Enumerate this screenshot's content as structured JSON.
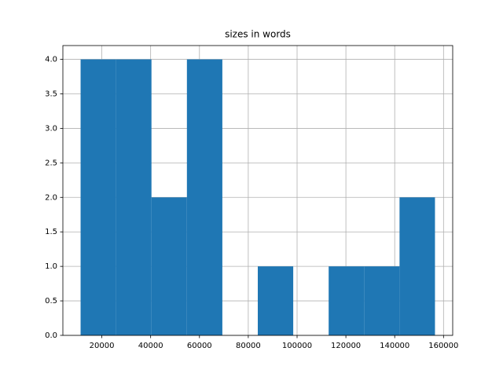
{
  "chart_data": {
    "type": "histogram",
    "title": "sizes in words",
    "bins": [
      11300,
      25820,
      40340,
      54860,
      69380,
      83900,
      98420,
      112940,
      127460,
      141980,
      156500
    ],
    "counts": [
      4,
      4,
      2,
      4,
      0,
      1,
      0,
      1,
      1,
      2
    ],
    "color": "#1f77b4",
    "xlim": [
      4040,
      163760
    ],
    "xticks": [
      20000,
      40000,
      60000,
      80000,
      100000,
      120000,
      140000,
      160000
    ],
    "ylim": [
      0,
      4.2
    ],
    "yticks": [
      {
        "value": 0,
        "label": "0.0"
      },
      0.5,
      {
        "value": 1,
        "label": "1.0"
      },
      1.5,
      {
        "value": 2,
        "label": "2.0"
      },
      2.5,
      {
        "value": 3,
        "label": "3.0"
      },
      3.5,
      {
        "value": 4,
        "label": "4.0"
      }
    ],
    "grid": true
  }
}
